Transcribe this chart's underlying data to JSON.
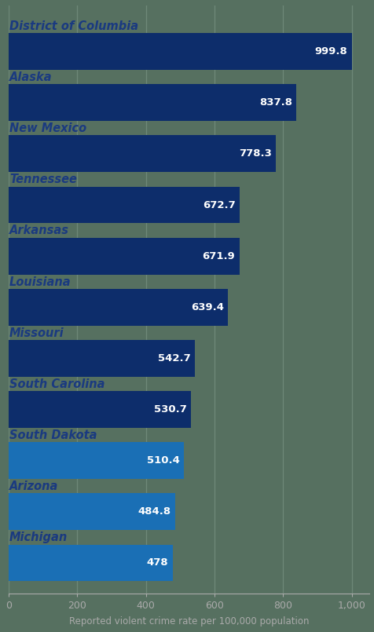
{
  "states": [
    "District of Columbia",
    "Alaska",
    "New Mexico",
    "Tennessee",
    "Arkansas",
    "Louisiana",
    "Missouri",
    "South Carolina",
    "South Dakota",
    "Arizona",
    "Michigan"
  ],
  "values": [
    999.8,
    837.8,
    778.3,
    672.7,
    671.9,
    639.4,
    542.7,
    530.7,
    510.4,
    484.8,
    478
  ],
  "bar_colors": [
    "#0d2d6b",
    "#0d2d6b",
    "#0d2d6b",
    "#0d2d6b",
    "#0d2d6b",
    "#0d2d6b",
    "#0d2d6b",
    "#0d2d6b",
    "#1a6fb5",
    "#1a6fb5",
    "#1a6fb5"
  ],
  "value_labels": [
    "999.8",
    "837.8",
    "778.3",
    "672.7",
    "671.9",
    "639.4",
    "542.7",
    "530.7",
    "510.4",
    "484.8",
    "478"
  ],
  "xlabel": "Reported violent crime rate per 100,000 population",
  "xlim": [
    0,
    1050
  ],
  "xticks": [
    0,
    200,
    400,
    600,
    800,
    1000
  ],
  "xtick_labels": [
    "0",
    "200",
    "400",
    "600",
    "800",
    "1,000"
  ],
  "background_color": "#567060",
  "grid_color": "#6e8878",
  "bar_height": 0.72,
  "label_fontsize": 10.5,
  "value_fontsize": 9.5,
  "xlabel_fontsize": 8.5,
  "xtick_fontsize": 9,
  "state_label_color": "#1a3a80"
}
